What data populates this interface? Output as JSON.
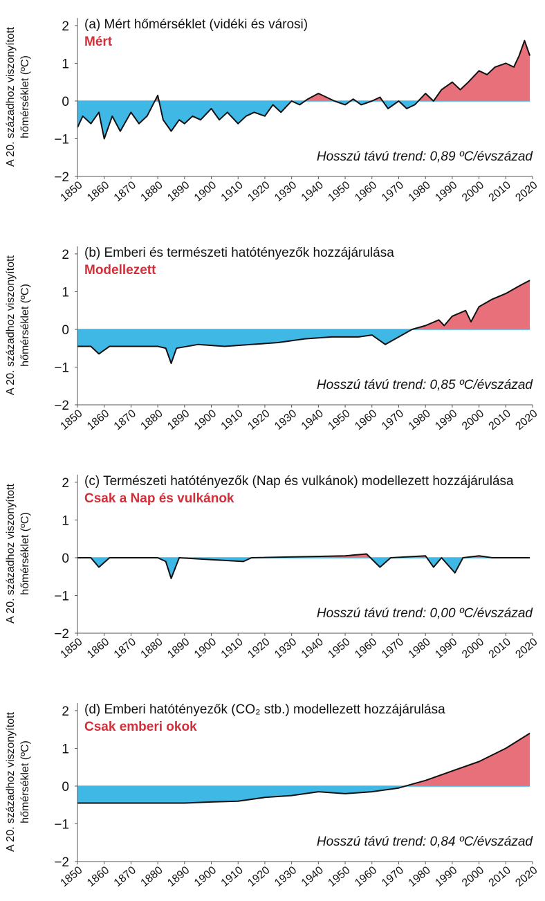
{
  "chart_data": [
    {
      "type": "area",
      "title": "(a) Mért hőmérséklet (vidéki és városi)",
      "subtitle": "Mért",
      "annotation": "Hosszú távú trend: 0,89 ºC/évszázad",
      "ylabel": [
        "A 20. századhoz viszonyított",
        "hőmérséklet (ºC)"
      ],
      "x": [
        1850,
        1852,
        1855,
        1858,
        1860,
        1863,
        1866,
        1870,
        1873,
        1876,
        1880,
        1882,
        1885,
        1888,
        1890,
        1893,
        1896,
        1900,
        1903,
        1906,
        1910,
        1913,
        1916,
        1920,
        1923,
        1926,
        1930,
        1933,
        1936,
        1940,
        1943,
        1946,
        1950,
        1953,
        1956,
        1960,
        1963,
        1966,
        1970,
        1973,
        1976,
        1980,
        1983,
        1986,
        1990,
        1993,
        1996,
        2000,
        2003,
        2006,
        2010,
        2013,
        2015,
        2017,
        2019
      ],
      "values": [
        -0.7,
        -0.4,
        -0.6,
        -0.3,
        -1.0,
        -0.4,
        -0.8,
        -0.3,
        -0.6,
        -0.4,
        0.15,
        -0.5,
        -0.8,
        -0.5,
        -0.6,
        -0.4,
        -0.5,
        -0.2,
        -0.5,
        -0.3,
        -0.6,
        -0.4,
        -0.3,
        -0.4,
        -0.1,
        -0.3,
        0.0,
        -0.1,
        0.05,
        0.2,
        0.1,
        0.0,
        -0.1,
        0.05,
        -0.1,
        0.0,
        0.1,
        -0.2,
        0.0,
        -0.2,
        -0.1,
        0.2,
        0.0,
        0.3,
        0.5,
        0.3,
        0.5,
        0.8,
        0.7,
        0.9,
        1.0,
        0.9,
        1.2,
        1.6,
        1.2
      ],
      "xlim": [
        1850,
        2020
      ],
      "ylim": [
        -2,
        2.2
      ],
      "xticks": [
        1850,
        1860,
        1870,
        1880,
        1890,
        1900,
        1910,
        1920,
        1930,
        1940,
        1950,
        1960,
        1970,
        1980,
        1990,
        2000,
        2010,
        2020
      ],
      "yticks": [
        {
          "value": -2,
          "label": "−2"
        },
        {
          "value": -1,
          "label": "−1"
        },
        0,
        1,
        2
      ],
      "color_positive": "#e8707a",
      "color_negative": "#3fb8e6",
      "line_color": "#111111"
    },
    {
      "type": "area",
      "title": "(b) Emberi és természeti hatótényezők hozzájárulása",
      "subtitle": "Modellezett",
      "annotation": "Hosszú távú trend: 0,85 ºC/évszázad",
      "ylabel": [
        "A 20. századhoz viszonyított",
        "hőmérséklet (ºC)"
      ],
      "x": [
        1850,
        1855,
        1858,
        1862,
        1870,
        1880,
        1883,
        1885,
        1887,
        1895,
        1905,
        1915,
        1925,
        1935,
        1945,
        1955,
        1960,
        1965,
        1970,
        1975,
        1980,
        1985,
        1987,
        1990,
        1995,
        1997,
        2000,
        2005,
        2010,
        2015,
        2019
      ],
      "values": [
        -0.45,
        -0.45,
        -0.65,
        -0.45,
        -0.45,
        -0.45,
        -0.5,
        -0.9,
        -0.5,
        -0.4,
        -0.45,
        -0.4,
        -0.35,
        -0.25,
        -0.2,
        -0.2,
        -0.15,
        -0.4,
        -0.2,
        0.0,
        0.1,
        0.25,
        0.1,
        0.35,
        0.5,
        0.2,
        0.6,
        0.8,
        0.95,
        1.15,
        1.3
      ],
      "xlim": [
        1850,
        2020
      ],
      "ylim": [
        -2,
        2.2
      ],
      "xticks": [
        1850,
        1860,
        1870,
        1880,
        1890,
        1900,
        1910,
        1920,
        1930,
        1940,
        1950,
        1960,
        1970,
        1980,
        1990,
        2000,
        2010,
        2020
      ],
      "yticks": [
        {
          "value": -2,
          "label": "−2"
        },
        {
          "value": -1,
          "label": "−1"
        },
        0,
        1,
        2
      ],
      "color_positive": "#e8707a",
      "color_negative": "#3fb8e6",
      "line_color": "#111111"
    },
    {
      "type": "area",
      "title": "(c) Természeti hatótényezők (Nap és vulkánok) modellezett hozzájárulása",
      "subtitle": "Csak a Nap és vulkánok",
      "annotation": "Hosszú távú trend: 0,00 ºC/évszázad",
      "ylabel": [
        "A 20. századhoz viszonyított",
        "hőmérséklet (ºC)"
      ],
      "x": [
        1850,
        1855,
        1858,
        1862,
        1880,
        1883,
        1885,
        1888,
        1900,
        1912,
        1915,
        1950,
        1958,
        1963,
        1967,
        1980,
        1983,
        1986,
        1991,
        1994,
        2000,
        2005,
        2019
      ],
      "values": [
        0,
        0,
        -0.25,
        0,
        0,
        -0.1,
        -0.55,
        0,
        -0.05,
        -0.1,
        0,
        0.05,
        0.1,
        -0.25,
        0,
        0.05,
        -0.25,
        0,
        -0.4,
        0,
        0.05,
        0,
        0
      ],
      "xlim": [
        1850,
        2020
      ],
      "ylim": [
        -2,
        2.2
      ],
      "xticks": [
        1850,
        1860,
        1870,
        1880,
        1890,
        1900,
        1910,
        1920,
        1930,
        1940,
        1950,
        1960,
        1970,
        1980,
        1990,
        2000,
        2010,
        2020
      ],
      "yticks": [
        {
          "value": -2,
          "label": "−2"
        },
        {
          "value": -1,
          "label": "−1"
        },
        0,
        1,
        2
      ],
      "color_positive": "#e8707a",
      "color_negative": "#3fb8e6",
      "line_color": "#111111"
    },
    {
      "type": "area",
      "title": "(d) Emberi hatótényezők (CO₂ stb.) modellezett hozzájárulása",
      "subtitle": "Csak emberi okok",
      "annotation": "Hosszú távú trend: 0,84 ºC/évszázad",
      "ylabel": [
        "A 20. századhoz viszonyított",
        "hőmérséklet (ºC)"
      ],
      "x": [
        1850,
        1860,
        1870,
        1880,
        1890,
        1900,
        1910,
        1920,
        1930,
        1940,
        1950,
        1960,
        1970,
        1975,
        1980,
        1990,
        2000,
        2010,
        2019
      ],
      "values": [
        -0.45,
        -0.45,
        -0.45,
        -0.45,
        -0.45,
        -0.42,
        -0.4,
        -0.3,
        -0.25,
        -0.15,
        -0.2,
        -0.15,
        -0.05,
        0.05,
        0.15,
        0.4,
        0.65,
        1.0,
        1.4
      ],
      "xlim": [
        1850,
        2020
      ],
      "ylim": [
        -2,
        2.2
      ],
      "xticks": [
        1850,
        1860,
        1870,
        1880,
        1890,
        1900,
        1910,
        1920,
        1930,
        1940,
        1950,
        1960,
        1970,
        1980,
        1990,
        2000,
        2010,
        2020
      ],
      "yticks": [
        {
          "value": -2,
          "label": "−2"
        },
        {
          "value": -1,
          "label": "−1"
        },
        0,
        1,
        2
      ],
      "color_positive": "#e8707a",
      "color_negative": "#3fb8e6",
      "line_color": "#111111"
    }
  ]
}
